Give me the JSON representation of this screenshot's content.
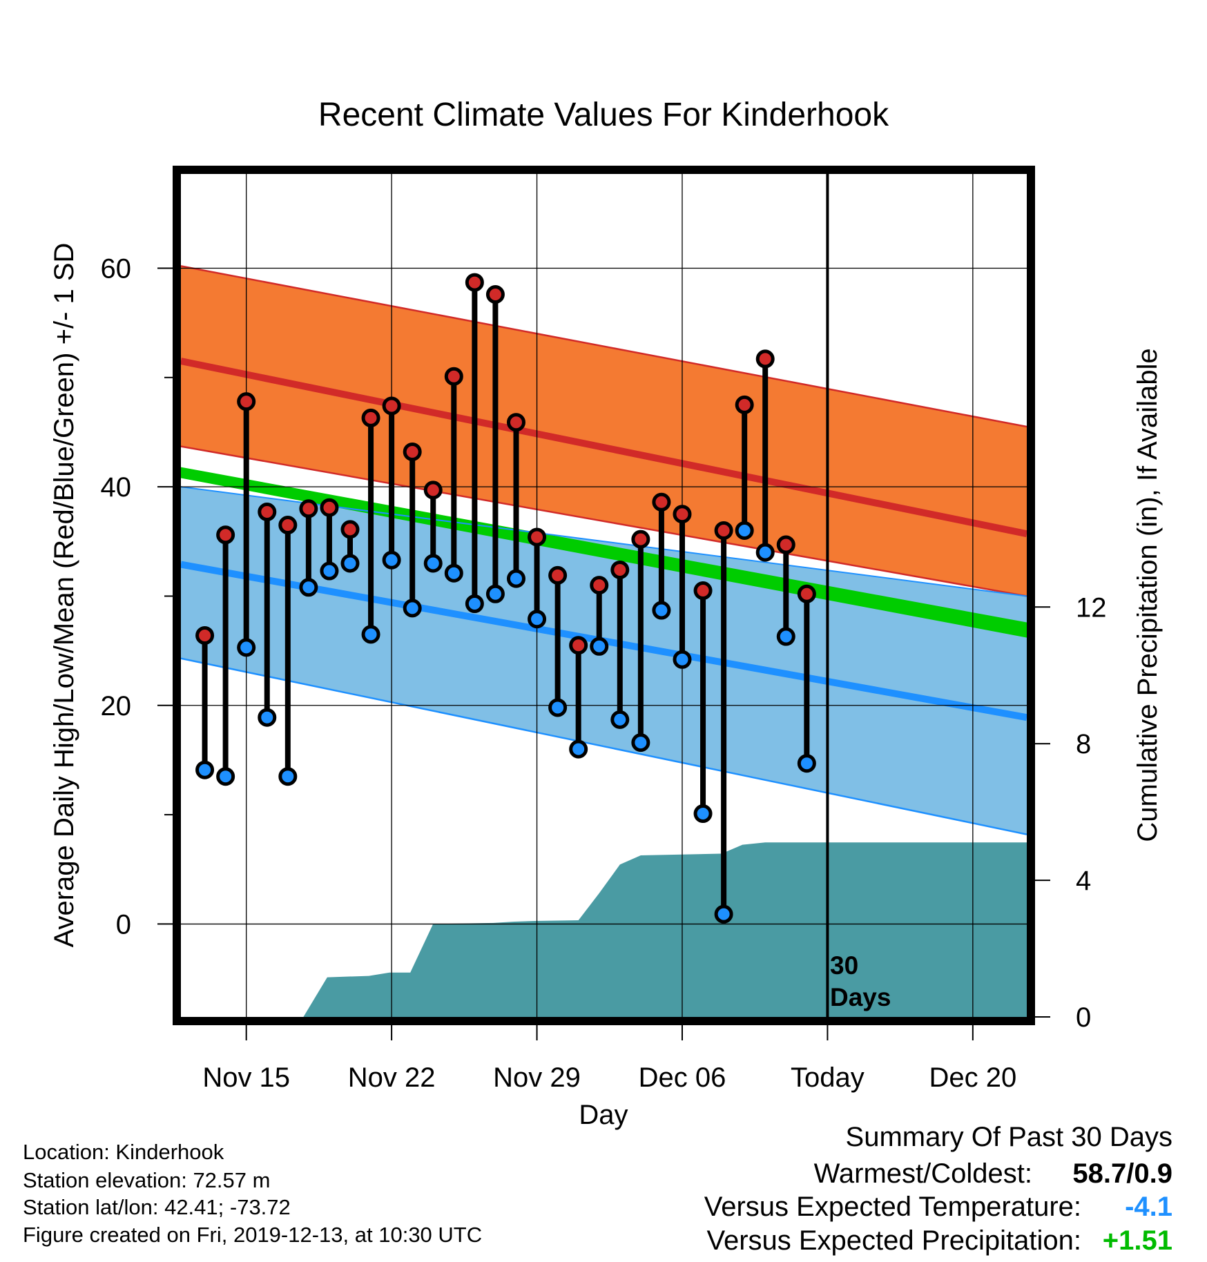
{
  "chart_data": {
    "type": "line",
    "title": "Recent Climate Values For Kinderhook",
    "xlabel": "Day",
    "ylabel": "Average Daily High/Low/Mean (Red/Blue/Green) +/- 1 SD",
    "y2label": "Cumulative Precipitation (in), If Available",
    "x_ticks": [
      {
        "day": 15,
        "label": "Nov 15"
      },
      {
        "day": 22,
        "label": "Nov 22"
      },
      {
        "day": 29,
        "label": "Nov 29"
      },
      {
        "day": 36,
        "label": "Dec 06"
      },
      {
        "day": 43,
        "label": "Today"
      },
      {
        "day": 50,
        "label": "Dec 20"
      }
    ],
    "xlim": [
      11.85,
      52.6
    ],
    "ylim": [
      -8.5,
      69
    ],
    "y_ticks": [
      "0",
      "20",
      "40",
      "60"
    ],
    "y_minor": [
      10,
      30,
      50
    ],
    "y2lim": [
      0,
      24.8
    ],
    "y2_ticks": [
      "0",
      "4",
      "8",
      "12"
    ],
    "today_marker": {
      "day": 43,
      "label_line1": "30",
      "label_line2": "Days"
    },
    "normal_high_band": {
      "days": [
        11.85,
        52.6
      ],
      "upper": [
        60.2,
        45.5
      ],
      "mean": [
        51.5,
        35.7
      ],
      "lower": [
        43.7,
        30.0
      ]
    },
    "normal_low_band": {
      "days": [
        11.85,
        52.6
      ],
      "upper": [
        40.0,
        30.0
      ],
      "mean": [
        32.9,
        18.9
      ],
      "lower": [
        24.3,
        8.2
      ]
    },
    "normal_mean_band": {
      "days": [
        11.85,
        52.6
      ],
      "upper": [
        41.8,
        27.6
      ],
      "lower": [
        40.8,
        26.2
      ]
    },
    "precipitation": {
      "days": [
        17.75,
        18.9,
        20.9,
        21.9,
        22.9,
        24.0,
        26.9,
        27.9,
        28.9,
        31.0,
        32.0,
        33.0,
        34.0,
        37.9,
        38.9,
        40.0,
        52.6
      ],
      "values": [
        0,
        1.16,
        1.2,
        1.3,
        1.3,
        2.72,
        2.75,
        2.79,
        2.81,
        2.83,
        3.62,
        4.46,
        4.73,
        4.78,
        5.04,
        5.11,
        5.11
      ]
    },
    "series": [
      {
        "name": "High",
        "days": [
          13,
          14,
          15,
          16,
          17,
          18,
          19,
          20,
          21,
          22,
          23,
          24,
          25,
          26,
          27,
          28,
          29,
          30,
          31,
          32,
          33,
          34,
          35,
          36,
          37,
          38,
          39,
          40,
          41,
          42
        ],
        "values": [
          26.4,
          35.6,
          47.8,
          37.7,
          36.5,
          38.0,
          38.1,
          36.1,
          46.3,
          47.4,
          43.2,
          39.7,
          50.1,
          58.7,
          57.6,
          45.9,
          35.4,
          31.9,
          25.5,
          31.0,
          32.4,
          35.2,
          38.6,
          37.5,
          30.5,
          36.0,
          47.5,
          51.7,
          34.7,
          30.2
        ]
      },
      {
        "name": "Low",
        "days": [
          13,
          14,
          15,
          16,
          17,
          18,
          19,
          20,
          21,
          22,
          23,
          24,
          25,
          26,
          27,
          28,
          29,
          30,
          31,
          32,
          33,
          34,
          35,
          36,
          37,
          38,
          39,
          40,
          41,
          42
        ],
        "values": [
          14.1,
          13.5,
          25.3,
          18.9,
          13.5,
          30.8,
          32.3,
          33.0,
          26.5,
          33.3,
          28.9,
          33.0,
          32.1,
          29.3,
          30.2,
          31.6,
          27.9,
          19.8,
          16.0,
          25.4,
          18.7,
          16.6,
          28.7,
          24.2,
          10.1,
          0.9,
          36.0,
          34.0,
          26.3,
          14.7
        ]
      }
    ]
  },
  "footer": {
    "location": "Location: Kinderhook",
    "elevation": "Station elevation: 72.57 m",
    "latlon": "Station lat/lon: 42.41; -73.72",
    "created": "Figure created on Fri, 2019-12-13, at 10:30 UTC"
  },
  "summary": {
    "title": "Summary Of Past 30 Days",
    "warm_cold_label": "Warmest/Coldest:",
    "warm_cold_value": "58.7/0.9",
    "temp_label": "Versus Expected Temperature:",
    "temp_value": "-4.1",
    "precip_label": "Versus Expected Precipitation:",
    "precip_value": "+1.51"
  },
  "colors": {
    "high_band": "#f47a32",
    "high_line": "#d12a28",
    "low_band": "#80bfe6",
    "low_line": "#1e90ff",
    "mean_band": "#00cc00",
    "overlap": "#931a1a",
    "precip": "#4a9ba3",
    "high_marker": "#d12a28",
    "low_marker": "#1e90ff",
    "temp_value": "#1e90ff",
    "precip_value": "#00bb00"
  }
}
